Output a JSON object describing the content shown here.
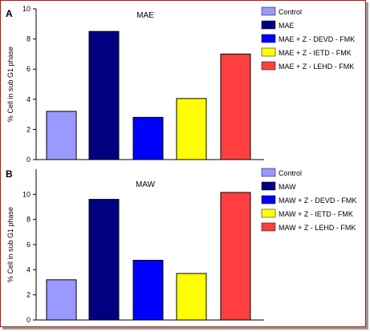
{
  "chart_data": [
    {
      "type": "bar",
      "panel_label": "A",
      "title": "MAE",
      "ylabel": "% Cell in sub G1 phase",
      "xlabel": "",
      "ylim": [
        0,
        10
      ],
      "yticks": [
        0,
        2,
        4,
        6,
        8,
        10
      ],
      "grid": false,
      "legend_position": "top-right",
      "categories": [
        "Control",
        "MAE",
        "MAE + Z -  DEVD - FMK",
        "MAE + Z -  IETD - FMK",
        "MAE + Z - LEHD - FMK"
      ],
      "values": [
        3.2,
        8.5,
        2.8,
        4.05,
        7.0
      ],
      "colors": [
        "#9999ff",
        "#000080",
        "#0000ff",
        "#ffff00",
        "#ff3f3f"
      ]
    },
    {
      "type": "bar",
      "panel_label": "B",
      "title": "MAW",
      "ylabel": "% Cell in sub G1 phase",
      "xlabel": "",
      "ylim": [
        0,
        12
      ],
      "yticks": [
        0,
        2,
        4,
        6,
        8,
        10
      ],
      "grid": false,
      "legend_position": "top-right",
      "categories": [
        "Control",
        "MAW",
        "MAW + Z -  DEVD - FMK",
        "MAW + Z -  IETD - FMK",
        "MAW + Z - LEHD - FMK"
      ],
      "values": [
        3.2,
        9.6,
        4.75,
        3.7,
        10.15
      ],
      "colors": [
        "#9999ff",
        "#000080",
        "#0000ff",
        "#ffff00",
        "#ff3f3f"
      ]
    }
  ]
}
